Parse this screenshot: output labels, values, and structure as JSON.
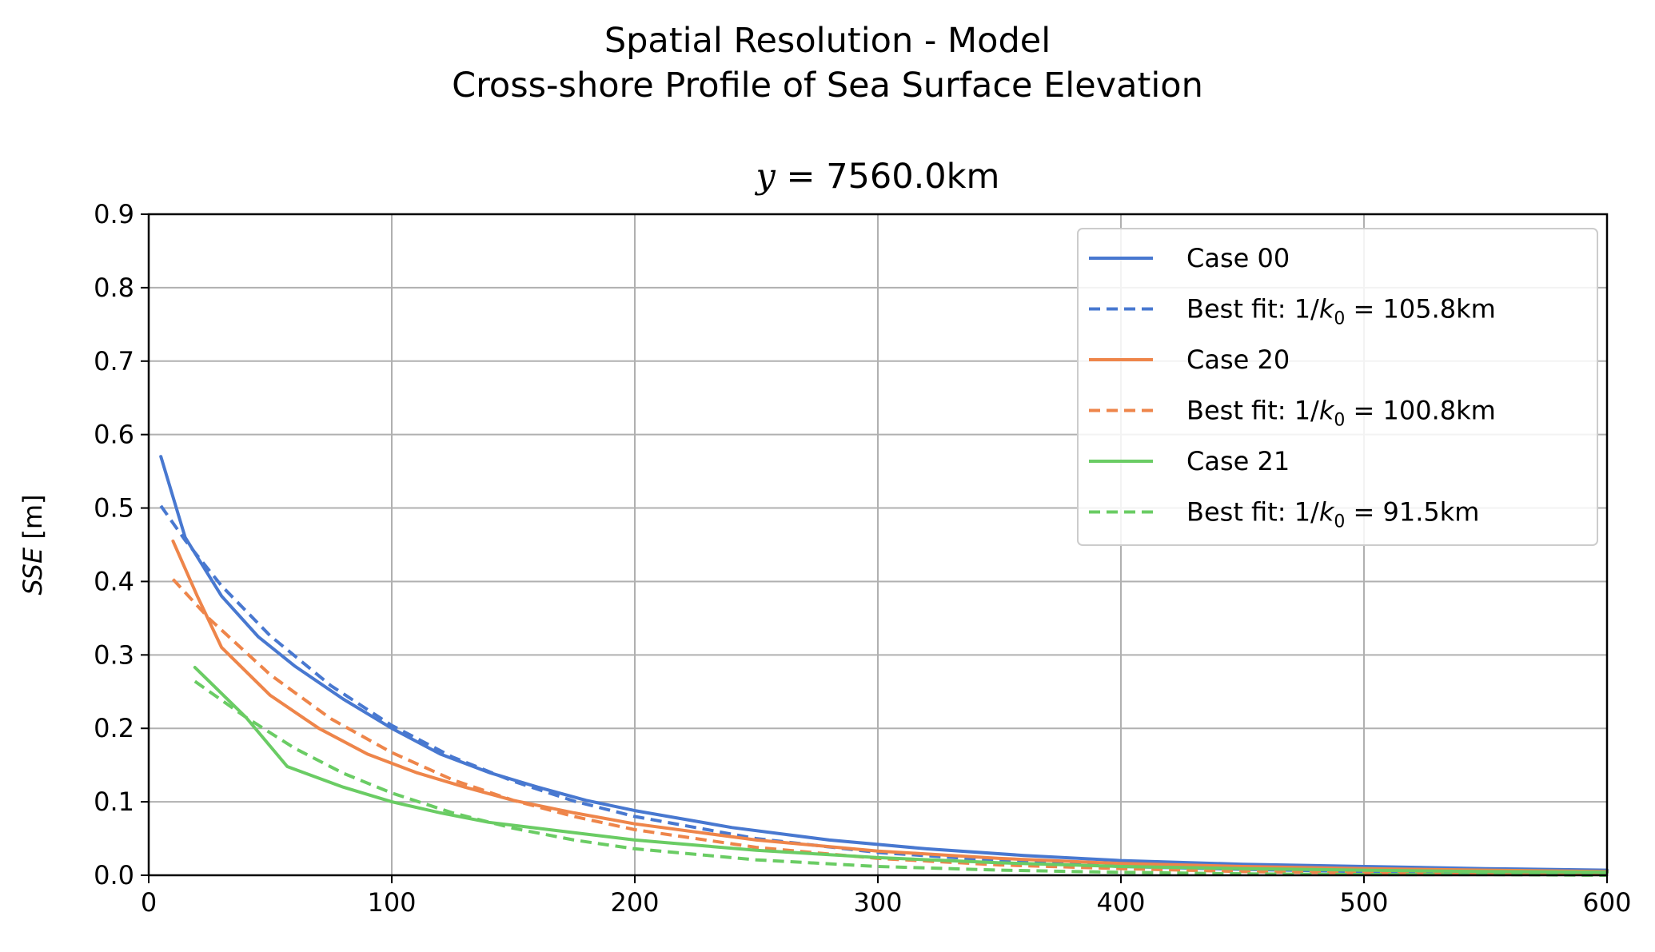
{
  "figure": {
    "suptitle_line1": "Spatial Resolution - Model",
    "suptitle_line2": "Cross-shore Profile of Sea Surface Elevation",
    "axes_title_var": "y",
    "axes_title_rest": " = 7560.0km"
  },
  "chart_data": {
    "type": "line",
    "title": "y = 7560.0km",
    "xlabel": "",
    "ylabel": "SSE [m]",
    "ylabel_var": "SSE",
    "ylabel_unit": " [m]",
    "xlim": [
      0,
      600
    ],
    "ylim": [
      0,
      0.9
    ],
    "xticks": [
      0,
      100,
      200,
      300,
      400,
      500,
      600
    ],
    "yticks": [
      "0.0",
      "0.1",
      "0.2",
      "0.3",
      "0.4",
      "0.5",
      "0.6",
      "0.7",
      "0.8",
      "0.9"
    ],
    "grid": true,
    "legend_position": "top-right",
    "colors": {
      "case00": "#4878d0",
      "case20": "#ee854a",
      "case21": "#6acc64"
    },
    "series": [
      {
        "name": "Case 00",
        "color": "#4878d0",
        "dash": "solid",
        "x": [
          5,
          15,
          30,
          45,
          60,
          80,
          100,
          120,
          140,
          160,
          180,
          200,
          240,
          280,
          320,
          360,
          400,
          450,
          500,
          550,
          600
        ],
        "y": [
          0.57,
          0.46,
          0.38,
          0.325,
          0.285,
          0.24,
          0.2,
          0.165,
          0.14,
          0.12,
          0.102,
          0.088,
          0.065,
          0.048,
          0.036,
          0.027,
          0.02,
          0.015,
          0.012,
          0.009,
          0.007
        ]
      },
      {
        "name": "Best fit: 1/k0 = 105.8km",
        "legend_prefix": "Best fit: 1/",
        "legend_var": "k",
        "legend_sub": "0",
        "legend_rest": " = 105.8km",
        "color": "#4878d0",
        "dash": "dashed",
        "x": [
          5,
          15,
          30,
          50,
          75,
          100,
          125,
          150,
          175,
          200,
          250,
          300,
          350,
          400,
          450,
          500,
          550,
          600
        ],
        "y": [
          0.503,
          0.456,
          0.394,
          0.326,
          0.258,
          0.204,
          0.161,
          0.128,
          0.101,
          0.08,
          0.05,
          0.031,
          0.02,
          0.012,
          0.008,
          0.005,
          0.003,
          0.002
        ]
      },
      {
        "name": "Case 20",
        "color": "#ee854a",
        "dash": "solid",
        "x": [
          10,
          20,
          30,
          50,
          70,
          90,
          110,
          130,
          150,
          175,
          200,
          250,
          300,
          350,
          400,
          450,
          500,
          550,
          600
        ],
        "y": [
          0.455,
          0.38,
          0.31,
          0.245,
          0.2,
          0.165,
          0.14,
          0.12,
          0.102,
          0.085,
          0.07,
          0.048,
          0.033,
          0.023,
          0.016,
          0.012,
          0.009,
          0.007,
          0.005
        ]
      },
      {
        "name": "Best fit: 1/k0 = 100.8km",
        "legend_prefix": "Best fit: 1/",
        "legend_var": "k",
        "legend_sub": "0",
        "legend_rest": " = 100.8km",
        "color": "#ee854a",
        "dash": "dashed",
        "x": [
          10,
          25,
          50,
          75,
          100,
          125,
          150,
          175,
          200,
          250,
          300,
          350,
          400,
          450,
          500,
          550,
          600
        ],
        "y": [
          0.403,
          0.349,
          0.273,
          0.213,
          0.167,
          0.13,
          0.102,
          0.08,
          0.062,
          0.038,
          0.023,
          0.014,
          0.009,
          0.005,
          0.003,
          0.002,
          0.001
        ]
      },
      {
        "name": "Case 21",
        "color": "#6acc64",
        "dash": "solid",
        "x": [
          19,
          40,
          57,
          80,
          100,
          120,
          140,
          170,
          200,
          250,
          300,
          350,
          400,
          450,
          500,
          550,
          600
        ],
        "y": [
          0.283,
          0.215,
          0.148,
          0.12,
          0.1,
          0.085,
          0.072,
          0.06,
          0.048,
          0.034,
          0.024,
          0.017,
          0.012,
          0.009,
          0.007,
          0.005,
          0.004
        ]
      },
      {
        "name": "Best fit: 1/k0 = 91.5km",
        "legend_prefix": "Best fit: 1/",
        "legend_var": "k",
        "legend_sub": "0",
        "legend_rest": " = 91.5km",
        "color": "#6acc64",
        "dash": "dashed",
        "x": [
          19,
          40,
          60,
          80,
          100,
          125,
          150,
          175,
          200,
          250,
          300,
          350,
          400,
          450,
          500,
          550,
          600
        ],
        "y": [
          0.264,
          0.215,
          0.173,
          0.139,
          0.112,
          0.085,
          0.064,
          0.048,
          0.036,
          0.021,
          0.012,
          0.007,
          0.004,
          0.002,
          0.001,
          0.001,
          0.0
        ]
      }
    ]
  }
}
